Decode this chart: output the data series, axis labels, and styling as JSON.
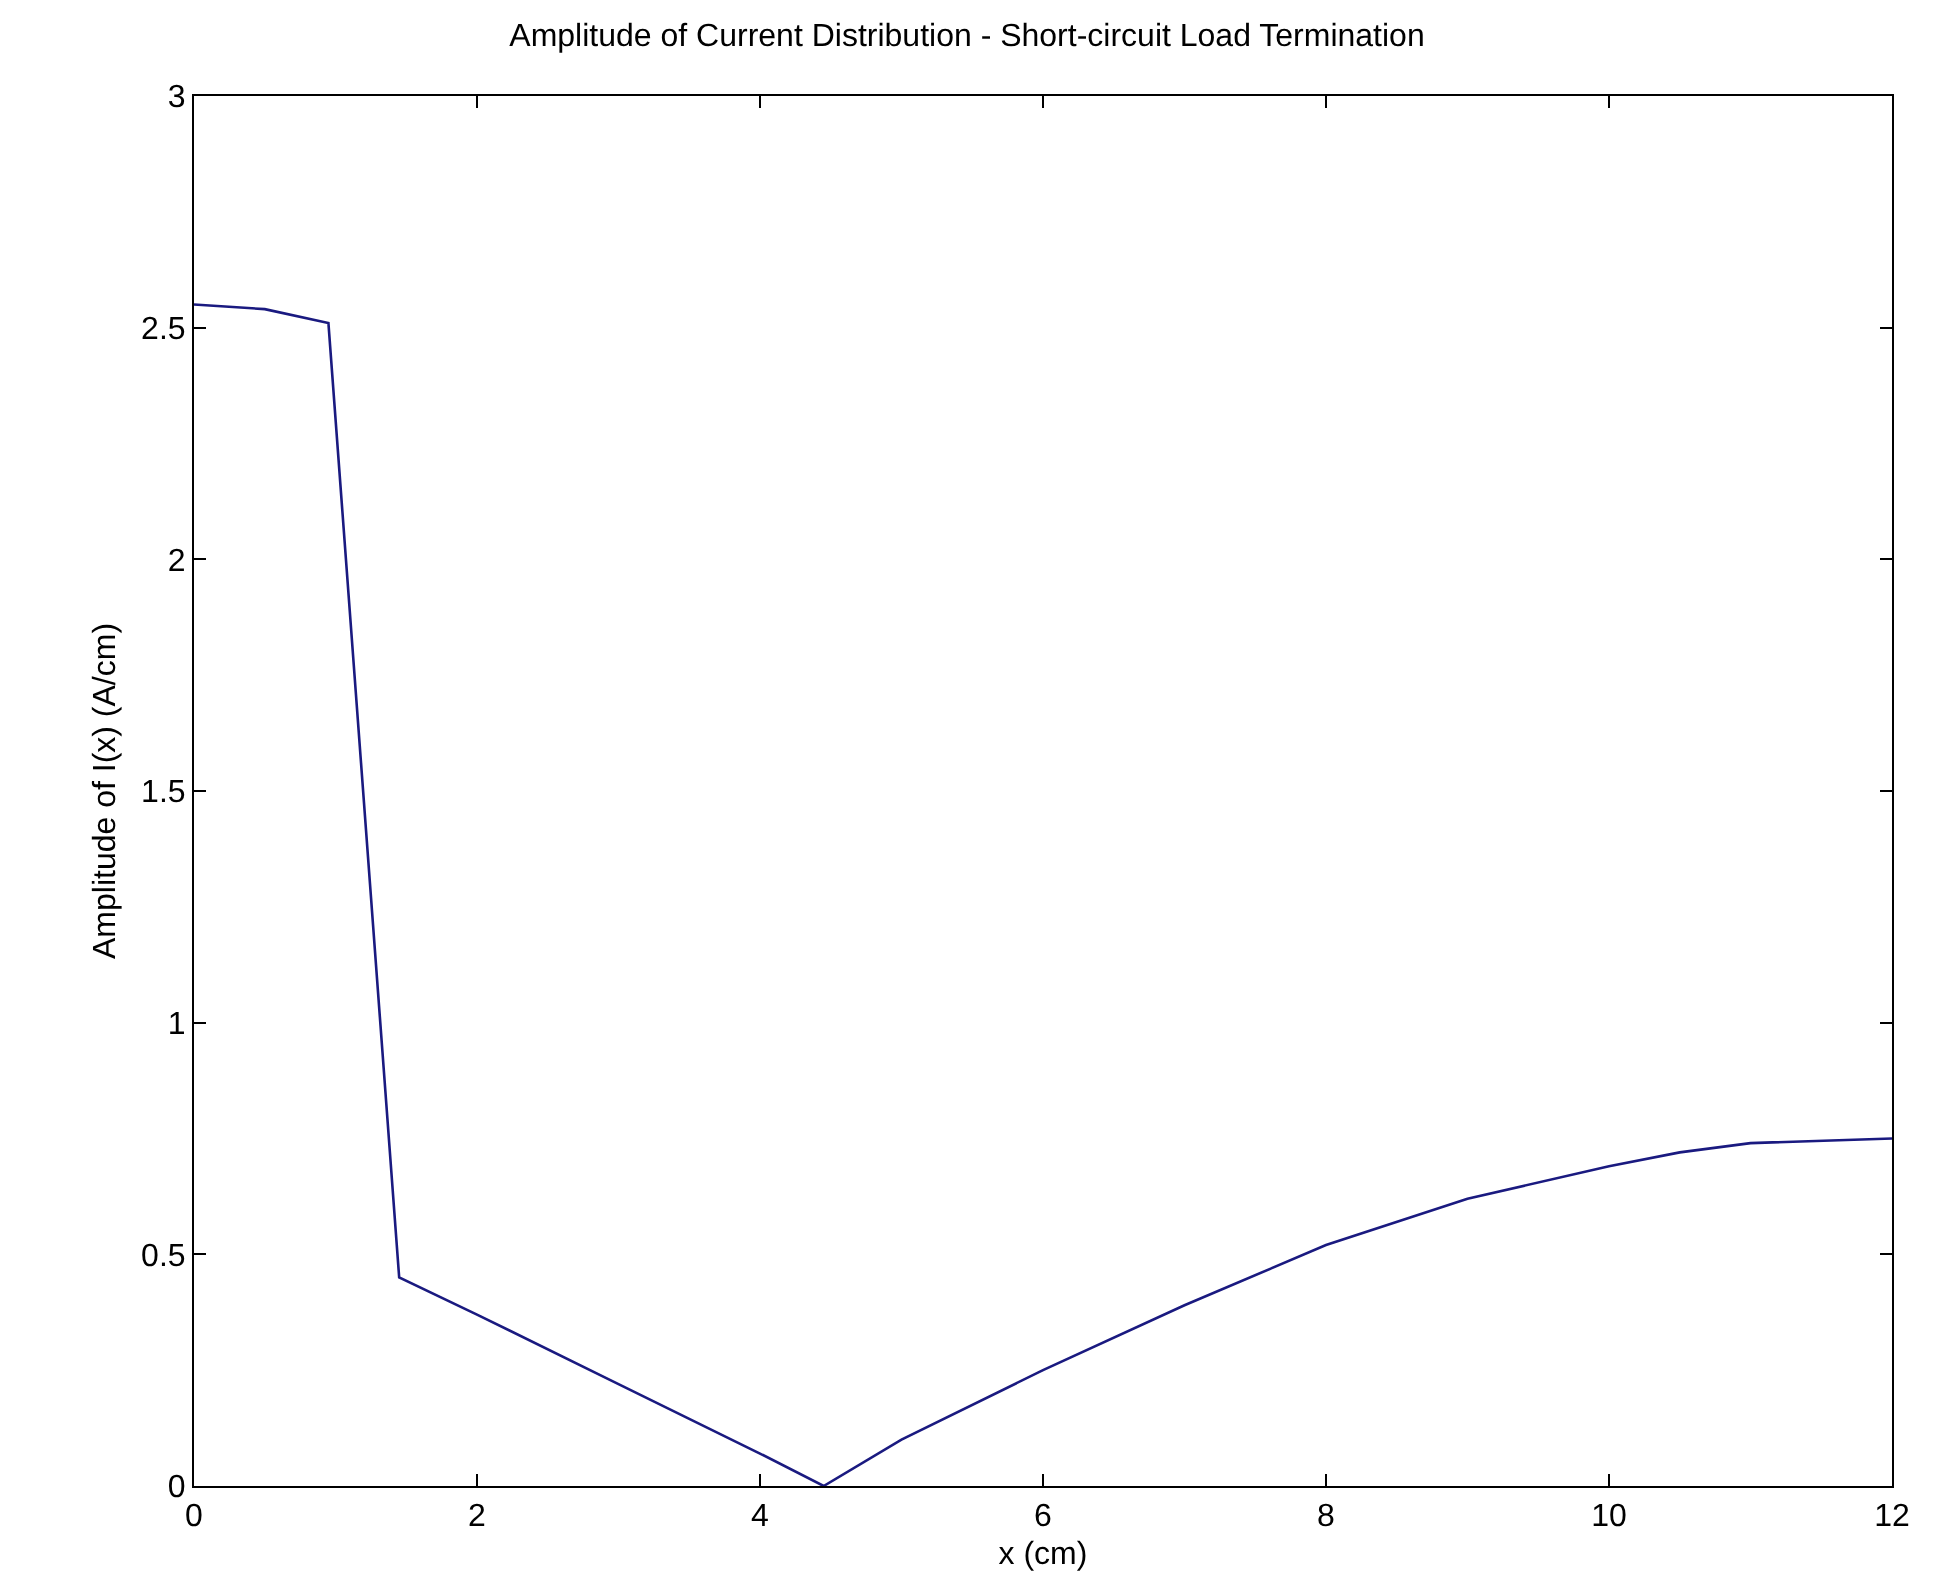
{
  "chart_data": {
    "type": "line",
    "title": "Amplitude of Current Distribution - Short-circuit Load Termination",
    "xlabel": "x (cm)",
    "ylabel": "Amplitude of I(x) (A/cm)",
    "x": [
      0,
      0.5,
      0.95,
      1.45,
      2,
      3,
      4,
      4.45,
      5,
      6,
      7,
      8,
      9,
      10,
      10.5,
      11,
      12
    ],
    "series": [
      {
        "color": "#1a1a80",
        "values": [
          2.55,
          2.54,
          2.51,
          0.45,
          0.37,
          0.22,
          0.07,
          0.0,
          0.1,
          0.25,
          0.39,
          0.52,
          0.62,
          0.69,
          0.72,
          0.74,
          0.75
        ]
      }
    ],
    "xlim": [
      0,
      12
    ],
    "xticks": [
      0,
      2,
      4,
      6,
      8,
      10,
      12
    ],
    "ylim": [
      0,
      3
    ],
    "yticks": [
      0,
      0.5,
      1,
      1.5,
      2,
      2.5,
      3
    ],
    "marker": "none",
    "line_style": "solid"
  }
}
